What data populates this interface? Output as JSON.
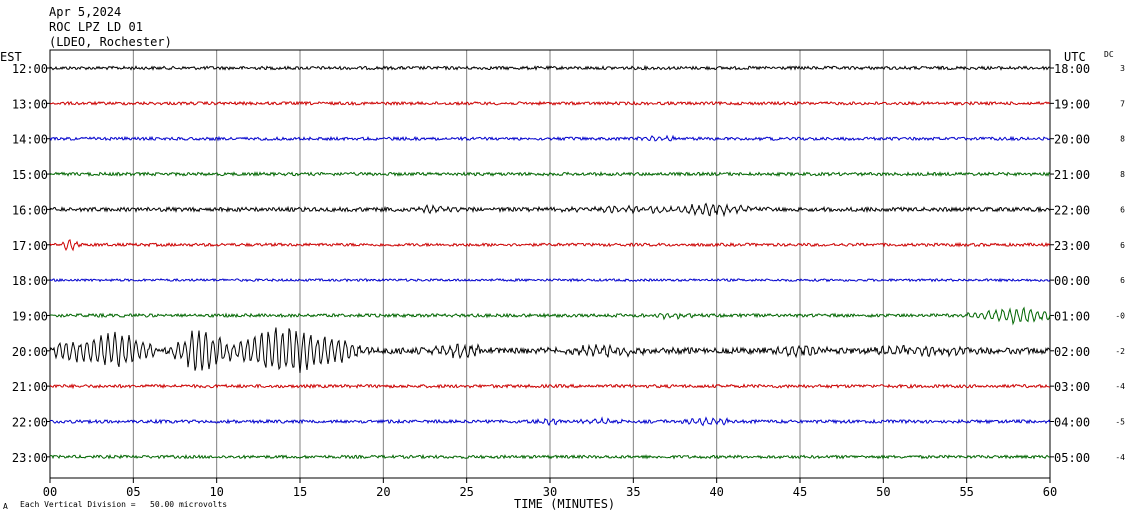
{
  "header": {
    "date": "Apr 5,2024",
    "station": "ROC LPZ LD 01",
    "network": "(LDEO, Rochester)"
  },
  "left_axis_label": "EST",
  "right_axis_label": "UTC",
  "dc_label": "DC",
  "footer": {
    "scale_note": "Each Vertical Division =   50.00 microvolts",
    "scale_glyph": "A"
  },
  "chart_data": {
    "type": "line",
    "xlabel": "TIME (MINUTES)",
    "xlim": [
      0,
      60
    ],
    "x_ticks": [
      "00",
      "05",
      "10",
      "15",
      "20",
      "25",
      "30",
      "35",
      "40",
      "45",
      "50",
      "55",
      "60"
    ],
    "grid": true,
    "colors": [
      "#000000",
      "#cc0000",
      "#0000cc",
      "#006600"
    ],
    "traces": [
      {
        "est": "12:00",
        "utc": "18:00",
        "dc": "3",
        "color": "#000000",
        "noise": 1.6,
        "events": []
      },
      {
        "est": "13:00",
        "utc": "19:00",
        "dc": "7",
        "color": "#cc0000",
        "noise": 1.5,
        "events": []
      },
      {
        "est": "14:00",
        "utc": "20:00",
        "dc": "8",
        "color": "#0000cc",
        "noise": 1.5,
        "events": [
          {
            "t": 36.5,
            "amp": 3,
            "dur": 1.5
          }
        ]
      },
      {
        "est": "15:00",
        "utc": "21:00",
        "dc": "8",
        "color": "#006600",
        "noise": 1.6,
        "events": []
      },
      {
        "est": "16:00",
        "utc": "22:00",
        "dc": "6",
        "color": "#000000",
        "noise": 2.0,
        "events": [
          {
            "t": 23,
            "amp": 3,
            "dur": 2
          },
          {
            "t": 40,
            "amp": 5,
            "dur": 2.5
          },
          {
            "t": 35,
            "amp": 2.5,
            "dur": 6
          }
        ]
      },
      {
        "est": "17:00",
        "utc": "23:00",
        "dc": "6",
        "color": "#cc0000",
        "noise": 1.5,
        "events": [
          {
            "t": 1.2,
            "amp": 7,
            "dur": 0.6
          }
        ]
      },
      {
        "est": "18:00",
        "utc": "00:00",
        "dc": "6",
        "color": "#0000cc",
        "noise": 1.2,
        "events": []
      },
      {
        "est": "19:00",
        "utc": "01:00",
        "dc": "-0",
        "color": "#006600",
        "noise": 1.6,
        "events": [
          {
            "t": 37.5,
            "amp": 3,
            "dur": 1.5
          },
          {
            "t": 58,
            "amp": 8,
            "dur": 3
          }
        ]
      },
      {
        "est": "20:00",
        "utc": "02:00",
        "dc": "-2",
        "color": "#000000",
        "noise": 3.0,
        "events": [
          {
            "t": 1,
            "amp": 9,
            "dur": 2
          },
          {
            "t": 4,
            "amp": 20,
            "dur": 2.5
          },
          {
            "t": 9,
            "amp": 22,
            "dur": 2
          },
          {
            "t": 14,
            "amp": 26,
            "dur": 3.5
          },
          {
            "t": 17.5,
            "amp": 9,
            "dur": 2
          },
          {
            "t": 24.5,
            "amp": 7,
            "dur": 2
          },
          {
            "t": 33,
            "amp": 6,
            "dur": 3
          },
          {
            "t": 45,
            "amp": 5,
            "dur": 2
          },
          {
            "t": 52,
            "amp": 4,
            "dur": 4
          }
        ]
      },
      {
        "est": "21:00",
        "utc": "03:00",
        "dc": "-4",
        "color": "#cc0000",
        "noise": 1.6,
        "events": []
      },
      {
        "est": "22:00",
        "utc": "04:00",
        "dc": "-5",
        "color": "#0000cc",
        "noise": 1.6,
        "events": [
          {
            "t": 30,
            "amp": 3,
            "dur": 1
          },
          {
            "t": 33,
            "amp": 3,
            "dur": 1.5
          },
          {
            "t": 39.5,
            "amp": 5,
            "dur": 1.5
          }
        ]
      },
      {
        "est": "23:00",
        "utc": "05:00",
        "dc": "-4",
        "color": "#006600",
        "noise": 1.5,
        "events": []
      }
    ]
  }
}
